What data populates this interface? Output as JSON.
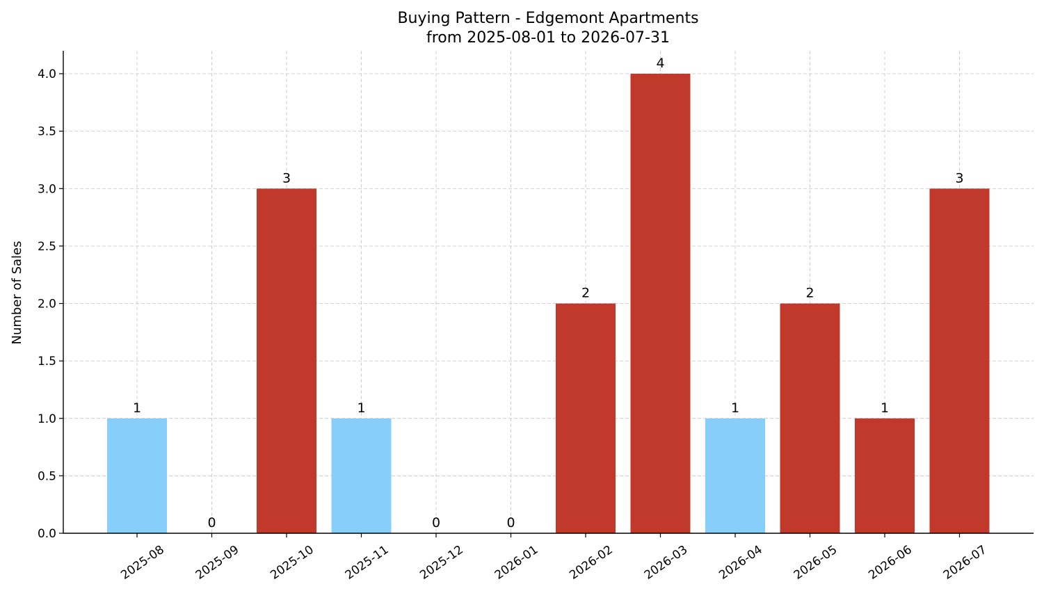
{
  "chart_data": {
    "type": "bar",
    "title": "Buying Pattern - Edgemont Apartments",
    "subtitle": "from 2025-08-01 to 2026-07-31",
    "xlabel": "",
    "ylabel": "Number of Sales",
    "ylim": [
      0,
      4.2
    ],
    "yticks": [
      "0.0",
      "0.5",
      "1.0",
      "1.5",
      "2.0",
      "2.5",
      "3.0",
      "3.5",
      "4.0"
    ],
    "categories": [
      "2025-08",
      "2025-09",
      "2025-10",
      "2025-11",
      "2025-12",
      "2026-01",
      "2026-02",
      "2026-03",
      "2026-04",
      "2026-05",
      "2026-06",
      "2026-07"
    ],
    "values": [
      1,
      0,
      3,
      1,
      0,
      0,
      2,
      4,
      1,
      2,
      1,
      3
    ],
    "bar_colors": [
      "#87CEFA",
      "#87CEFA",
      "#C0392B",
      "#87CEFA",
      "#87CEFA",
      "#87CEFA",
      "#C0392B",
      "#C0392B",
      "#87CEFA",
      "#C0392B",
      "#C0392B",
      "#C0392B"
    ],
    "data_labels": [
      "1",
      "0",
      "3",
      "1",
      "0",
      "0",
      "2",
      "4",
      "1",
      "2",
      "1",
      "3"
    ],
    "grid": true,
    "legend": "none"
  }
}
